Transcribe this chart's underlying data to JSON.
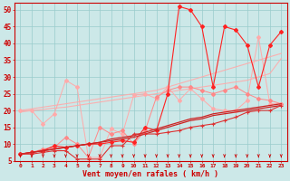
{
  "xlabel": "Vent moyen/en rafales ( km/h )",
  "x": [
    0,
    1,
    2,
    3,
    4,
    5,
    6,
    7,
    8,
    9,
    10,
    11,
    12,
    13,
    14,
    15,
    16,
    17,
    18,
    19,
    20,
    21,
    22,
    23
  ],
  "background_color": "#cce8e8",
  "grid_color": "#99cccc",
  "ylim": [
    5,
    52
  ],
  "yticks": [
    5,
    10,
    15,
    20,
    25,
    30,
    35,
    40,
    45,
    50
  ],
  "series": {
    "pink_jagged": [
      20.0,
      20.0,
      16.0,
      19.0,
      29.0,
      27.0,
      6.0,
      6.0,
      14.5,
      13.0,
      24.5,
      25.0,
      23.5,
      27.0,
      23.0,
      26.5,
      23.5,
      20.5,
      20.0,
      20.0,
      23.0,
      42.0,
      22.0,
      22.0
    ],
    "pink_trend_upper": [
      20.0,
      20.5,
      21.0,
      21.5,
      22.0,
      22.5,
      23.0,
      23.5,
      24.0,
      24.5,
      25.0,
      25.5,
      26.0,
      27.0,
      28.0,
      29.0,
      30.0,
      31.0,
      32.0,
      33.0,
      34.0,
      35.0,
      36.0,
      37.0
    ],
    "pink_trend_lower": [
      19.5,
      20.0,
      20.3,
      20.7,
      21.0,
      21.5,
      22.0,
      22.5,
      23.0,
      23.5,
      24.0,
      24.5,
      25.0,
      25.5,
      26.0,
      26.5,
      27.0,
      27.5,
      28.0,
      28.5,
      29.0,
      30.0,
      31.0,
      35.5
    ],
    "salmon_jagged": [
      7.0,
      7.5,
      8.5,
      9.0,
      12.0,
      10.0,
      6.0,
      15.0,
      13.0,
      14.0,
      10.0,
      14.0,
      24.0,
      26.0,
      27.0,
      27.0,
      26.0,
      25.0,
      26.0,
      27.0,
      25.0,
      23.5,
      23.0,
      22.0
    ],
    "red_peak": [
      7.0,
      7.5,
      8.0,
      9.5,
      9.0,
      9.5,
      10.0,
      10.0,
      10.5,
      11.0,
      10.5,
      15.0,
      14.0,
      25.0,
      51.0,
      50.0,
      45.0,
      27.0,
      45.0,
      44.0,
      39.5,
      27.0,
      39.5,
      43.5
    ],
    "red_trend1": [
      7.0,
      7.5,
      8.0,
      8.5,
      9.0,
      9.5,
      10.0,
      10.5,
      11.0,
      11.5,
      12.0,
      13.0,
      14.0,
      15.0,
      16.0,
      17.0,
      17.5,
      18.5,
      19.0,
      19.5,
      20.0,
      20.5,
      21.0,
      21.5
    ],
    "red_trend2": [
      7.0,
      7.5,
      8.0,
      8.5,
      9.0,
      9.5,
      10.0,
      10.5,
      11.5,
      12.0,
      12.5,
      13.5,
      14.5,
      15.5,
      16.5,
      17.5,
      18.0,
      19.0,
      19.5,
      20.0,
      20.5,
      21.0,
      21.5,
      22.0
    ],
    "red_jagged_low": [
      7.0,
      7.0,
      7.5,
      8.0,
      8.0,
      5.5,
      5.5,
      5.5,
      9.5,
      9.5,
      13.0,
      13.0,
      13.0,
      13.5,
      14.0,
      15.0,
      15.5,
      16.0,
      17.0,
      18.0,
      19.5,
      20.0,
      20.0,
      21.5
    ]
  }
}
